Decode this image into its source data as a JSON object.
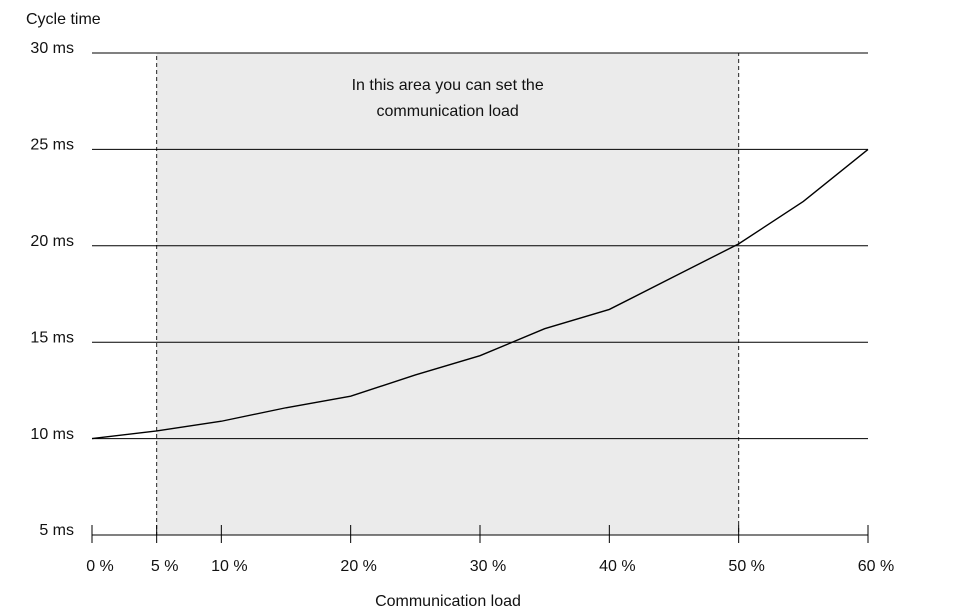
{
  "chart_data": {
    "type": "line",
    "ylabel": "Cycle time",
    "xlabel": "Communication load",
    "annotation": [
      "In this area you can set the",
      "communication load"
    ],
    "highlight_range": [
      5,
      50
    ],
    "x": [
      0,
      5,
      10,
      15,
      20,
      25,
      30,
      35,
      40,
      45,
      50,
      55,
      60
    ],
    "series": [
      {
        "color": "#000000",
        "values": [
          10,
          10.4,
          10.9,
          11.6,
          12.2,
          13.3,
          14.3,
          15.7,
          16.7,
          18.4,
          20.1,
          22.3,
          25
        ]
      }
    ],
    "xlim": [
      0,
      60
    ],
    "xticks": [
      {
        "value": 0,
        "label": "0 %"
      },
      {
        "value": 5,
        "label": "5 %"
      },
      {
        "value": 10,
        "label": "10 %"
      },
      {
        "value": 20,
        "label": "20 %"
      },
      {
        "value": 30,
        "label": "30 %"
      },
      {
        "value": 40,
        "label": "40 %"
      },
      {
        "value": 50,
        "label": "50 %"
      },
      {
        "value": 60,
        "label": "60 %"
      }
    ],
    "ylim": [
      5,
      30
    ],
    "yticks": [
      {
        "value": 5,
        "label": "5 ms"
      },
      {
        "value": 10,
        "label": "10 ms"
      },
      {
        "value": 15,
        "label": "15 ms"
      },
      {
        "value": 20,
        "label": "20 ms"
      },
      {
        "value": 25,
        "label": "25 ms"
      },
      {
        "value": 30,
        "label": "30  ms"
      }
    ],
    "grid": true
  }
}
